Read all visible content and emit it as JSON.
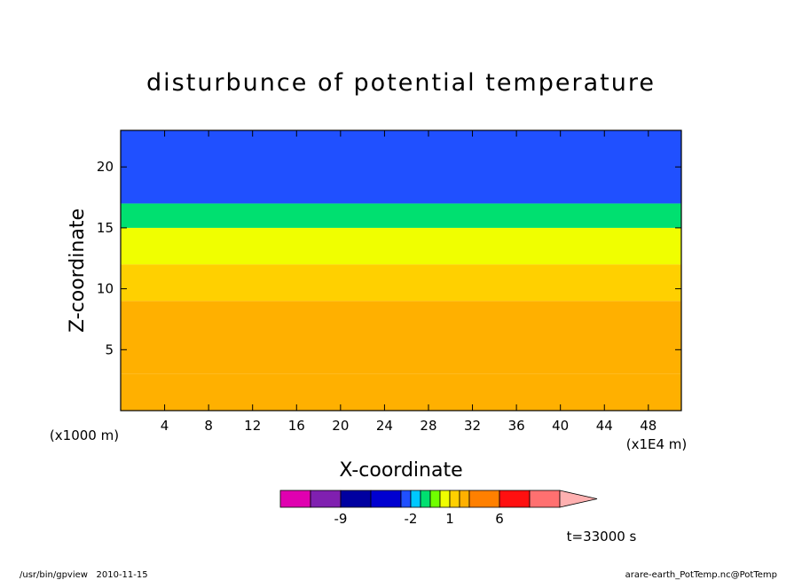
{
  "chart_data": {
    "type": "heatmap",
    "title": "disturbunce of potential temperature",
    "xlabel": "X-coordinate",
    "ylabel": "Z-coordinate",
    "x_unit": "(x1000 m)",
    "x_scale_label": "(x1E4 m)",
    "xlim": [
      0,
      51
    ],
    "ylim": [
      0,
      23
    ],
    "x_ticks": [
      "4",
      "8",
      "12",
      "16",
      "20",
      "24",
      "28",
      "32",
      "36",
      "40",
      "44",
      "48"
    ],
    "y_ticks": [
      "5",
      "10",
      "15",
      "20"
    ],
    "time_label": "t=33000 s",
    "colorbar": {
      "labels": [
        {
          "text": "-9",
          "at": -9
        },
        {
          "text": "-2",
          "at": -2
        },
        {
          "text": "1",
          "at": 1
        },
        {
          "text": "6",
          "at": 6
        }
      ],
      "bins": [
        {
          "lo": -15,
          "hi": -12,
          "color": "#e000b0"
        },
        {
          "lo": -12,
          "hi": -9,
          "color": "#8020b0"
        },
        {
          "lo": -9,
          "hi": -6,
          "color": "#0000a0"
        },
        {
          "lo": -6,
          "hi": -3,
          "color": "#0000d0"
        },
        {
          "lo": -3,
          "hi": -2,
          "color": "#2050ff"
        },
        {
          "lo": -2,
          "hi": -1,
          "color": "#00c8ff"
        },
        {
          "lo": -1,
          "hi": 0,
          "color": "#00e070"
        },
        {
          "lo": 0,
          "hi": 0.5,
          "color": "#70ff00"
        },
        {
          "lo": 0.5,
          "hi": 1,
          "color": "#f0ff00"
        },
        {
          "lo": 1,
          "hi": 2,
          "color": "#ffd000"
        },
        {
          "lo": 2,
          "hi": 3,
          "color": "#ffb000"
        },
        {
          "lo": 3,
          "hi": 6,
          "color": "#ff8000"
        },
        {
          "lo": 6,
          "hi": 9,
          "color": "#ff1010"
        },
        {
          "lo": 9,
          "hi": 12,
          "color": "#ff7070"
        },
        {
          "lo": 12,
          "hi": 15,
          "color": "#ffb0b0"
        }
      ]
    },
    "field_levels": [
      {
        "z": [
          0,
          3
        ],
        "value": 2.5
      },
      {
        "z": [
          3,
          9
        ],
        "value": 2.5
      },
      {
        "z": [
          9,
          12
        ],
        "value": 1.5
      },
      {
        "z": [
          12,
          15
        ],
        "value": 0.8
      },
      {
        "z": [
          15,
          17
        ],
        "value": -0.3
      },
      {
        "z": [
          17,
          23
        ],
        "value": -2.5
      }
    ]
  },
  "footer": {
    "left": "/usr/bin/gpview   2010-11-15",
    "right": "arare-earth_PotTemp.nc@PotTemp"
  }
}
